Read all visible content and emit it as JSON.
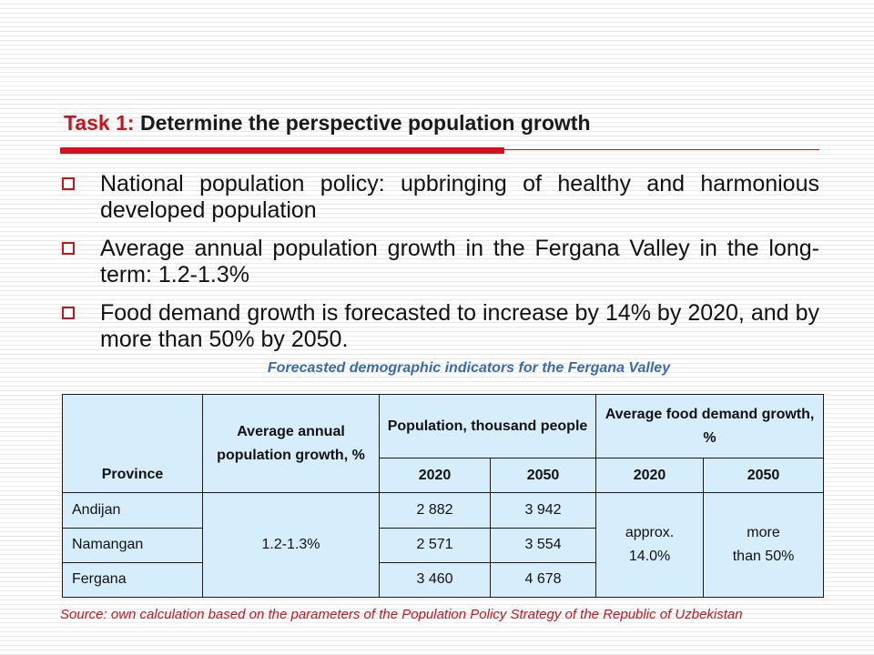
{
  "title": {
    "prefix": "Task 1:",
    "text": "Determine the perspective population growth"
  },
  "bullets": [
    "National population policy: upbringing of healthy and harmonious developed population",
    "Average annual population growth in the Fergana Valley in the long-term: 1.2-1.3%",
    "Food demand growth is forecasted to increase by 14% by 2020, and by more than 50% by 2050."
  ],
  "colors": {
    "accent_red": "#d3121b",
    "caption_blue": "#3a6aa8",
    "table_fill": "#d6eefb"
  },
  "icons": {
    "bullet": "hollow-square-bullet-icon"
  },
  "table": {
    "caption": "Forecasted demographic indicators for the Fergana Valley",
    "headers": {
      "province": "Province",
      "growth": "Average annual population growth, %",
      "population": "Population, thousand people",
      "food": "Average food demand growth, %",
      "years": [
        "2020",
        "2050",
        "2020",
        "2050"
      ]
    },
    "growth_value": "1.2-1.3%",
    "food_2020": [
      "approx.",
      "14.0%"
    ],
    "food_2050": [
      "more",
      "than 50%"
    ],
    "rows": [
      {
        "province": "Andijan",
        "pop_2020": "2 882",
        "pop_2050": "3 942"
      },
      {
        "province": "Namangan",
        "pop_2020": "2 571",
        "pop_2050": "3 554"
      },
      {
        "province": "Fergana",
        "pop_2020": "3 460",
        "pop_2050": "4 678"
      }
    ]
  },
  "source": "Source: own calculation based on the parameters of the Population Policy Strategy of the Republic of Uzbekistan"
}
